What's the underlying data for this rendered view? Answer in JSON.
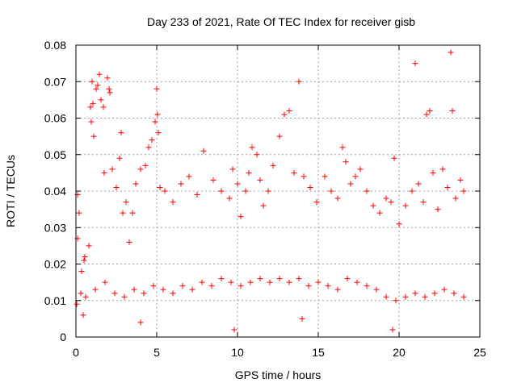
{
  "chart_data": {
    "type": "scatter",
    "title": "Day 233 of 2021, Rate Of TEC Index for receiver gisb",
    "xlabel": "GPS time / hours",
    "ylabel": "ROTI / TECUs",
    "xlim": [
      0,
      25
    ],
    "ylim": [
      0,
      0.08
    ],
    "x_ticks": [
      "0",
      "5",
      "10",
      "15",
      "20",
      "25"
    ],
    "y_ticks": [
      "0",
      "0.01",
      "0.02",
      "0.03",
      "0.04",
      "0.05",
      "0.06",
      "0.07",
      "0.08"
    ],
    "grid": true,
    "legend": "none",
    "marker": "+",
    "color": "#ff0000",
    "series": [
      {
        "points": [
          [
            0.05,
            0.009
          ],
          [
            0.1,
            0.027
          ],
          [
            0.1,
            0.039
          ],
          [
            0.2,
            0.034
          ],
          [
            0.35,
            0.018
          ],
          [
            0.45,
            0.006
          ],
          [
            0.5,
            0.021
          ],
          [
            0.55,
            0.022
          ],
          [
            0.8,
            0.025
          ],
          [
            0.9,
            0.063
          ],
          [
            0.95,
            0.059
          ],
          [
            1.0,
            0.07
          ],
          [
            1.05,
            0.064
          ],
          [
            1.1,
            0.055
          ],
          [
            1.25,
            0.068
          ],
          [
            1.35,
            0.069
          ],
          [
            1.45,
            0.072
          ],
          [
            1.55,
            0.065
          ],
          [
            1.7,
            0.063
          ],
          [
            1.75,
            0.045
          ],
          [
            1.95,
            0.071
          ],
          [
            2.05,
            0.068
          ],
          [
            2.1,
            0.067
          ],
          [
            2.25,
            0.046
          ],
          [
            2.5,
            0.041
          ],
          [
            2.7,
            0.049
          ],
          [
            2.8,
            0.056
          ],
          [
            2.9,
            0.034
          ],
          [
            3.1,
            0.037
          ],
          [
            3.3,
            0.026
          ],
          [
            3.5,
            0.034
          ],
          [
            3.7,
            0.042
          ],
          [
            4.0,
            0.046
          ],
          [
            4.3,
            0.047
          ],
          [
            4.5,
            0.052
          ],
          [
            4.7,
            0.054
          ],
          [
            4.9,
            0.059
          ],
          [
            5.0,
            0.068
          ],
          [
            5.05,
            0.061
          ],
          [
            5.1,
            0.056
          ],
          [
            5.2,
            0.041
          ],
          [
            5.5,
            0.04
          ],
          [
            6.0,
            0.037
          ],
          [
            6.5,
            0.042
          ],
          [
            7.0,
            0.044
          ],
          [
            7.5,
            0.039
          ],
          [
            7.9,
            0.051
          ],
          [
            8.5,
            0.043
          ],
          [
            9.0,
            0.04
          ],
          [
            9.5,
            0.038
          ],
          [
            9.7,
            0.046
          ],
          [
            10.0,
            0.042
          ],
          [
            10.2,
            0.033
          ],
          [
            10.5,
            0.04
          ],
          [
            10.7,
            0.045
          ],
          [
            10.9,
            0.052
          ],
          [
            11.2,
            0.05
          ],
          [
            11.4,
            0.043
          ],
          [
            11.6,
            0.036
          ],
          [
            11.9,
            0.04
          ],
          [
            12.2,
            0.047
          ],
          [
            12.6,
            0.055
          ],
          [
            12.9,
            0.061
          ],
          [
            13.2,
            0.062
          ],
          [
            13.5,
            0.045
          ],
          [
            13.8,
            0.07
          ],
          [
            14.1,
            0.044
          ],
          [
            14.5,
            0.041
          ],
          [
            14.9,
            0.037
          ],
          [
            15.4,
            0.044
          ],
          [
            15.8,
            0.04
          ],
          [
            16.2,
            0.038
          ],
          [
            16.5,
            0.052
          ],
          [
            16.7,
            0.048
          ],
          [
            17.0,
            0.042
          ],
          [
            17.3,
            0.044
          ],
          [
            17.6,
            0.046
          ],
          [
            18.0,
            0.04
          ],
          [
            18.4,
            0.036
          ],
          [
            18.8,
            0.034
          ],
          [
            19.2,
            0.038
          ],
          [
            19.5,
            0.037
          ],
          [
            19.7,
            0.049
          ],
          [
            20.0,
            0.031
          ],
          [
            20.4,
            0.036
          ],
          [
            20.8,
            0.04
          ],
          [
            21.0,
            0.075
          ],
          [
            21.2,
            0.042
          ],
          [
            21.5,
            0.037
          ],
          [
            21.7,
            0.061
          ],
          [
            21.9,
            0.062
          ],
          [
            22.1,
            0.045
          ],
          [
            22.4,
            0.035
          ],
          [
            22.7,
            0.046
          ],
          [
            23.0,
            0.041
          ],
          [
            23.2,
            0.078
          ],
          [
            23.3,
            0.062
          ],
          [
            23.5,
            0.038
          ],
          [
            23.8,
            0.043
          ],
          [
            24.0,
            0.04
          ],
          [
            0.3,
            0.012
          ],
          [
            0.6,
            0.011
          ],
          [
            1.2,
            0.013
          ],
          [
            1.8,
            0.015
          ],
          [
            2.4,
            0.012
          ],
          [
            3.0,
            0.011
          ],
          [
            3.6,
            0.013
          ],
          [
            4.2,
            0.012
          ],
          [
            4.8,
            0.014
          ],
          [
            5.4,
            0.013
          ],
          [
            6.0,
            0.012
          ],
          [
            6.6,
            0.014
          ],
          [
            7.2,
            0.013
          ],
          [
            7.8,
            0.015
          ],
          [
            8.4,
            0.014
          ],
          [
            9.0,
            0.016
          ],
          [
            9.6,
            0.015
          ],
          [
            10.2,
            0.014
          ],
          [
            10.8,
            0.015
          ],
          [
            11.4,
            0.016
          ],
          [
            12.0,
            0.015
          ],
          [
            12.6,
            0.016
          ],
          [
            13.2,
            0.015
          ],
          [
            13.8,
            0.016
          ],
          [
            14.4,
            0.014
          ],
          [
            15.0,
            0.015
          ],
          [
            15.6,
            0.014
          ],
          [
            16.2,
            0.013
          ],
          [
            16.8,
            0.016
          ],
          [
            17.4,
            0.015
          ],
          [
            18.0,
            0.014
          ],
          [
            18.6,
            0.013
          ],
          [
            19.2,
            0.011
          ],
          [
            19.8,
            0.01
          ],
          [
            20.4,
            0.011
          ],
          [
            21.0,
            0.012
          ],
          [
            21.6,
            0.011
          ],
          [
            22.2,
            0.012
          ],
          [
            22.8,
            0.013
          ],
          [
            23.4,
            0.012
          ],
          [
            24.0,
            0.011
          ],
          [
            9.8,
            0.002
          ],
          [
            19.6,
            0.002
          ],
          [
            4.0,
            0.004
          ],
          [
            14.0,
            0.005
          ]
        ]
      }
    ]
  }
}
